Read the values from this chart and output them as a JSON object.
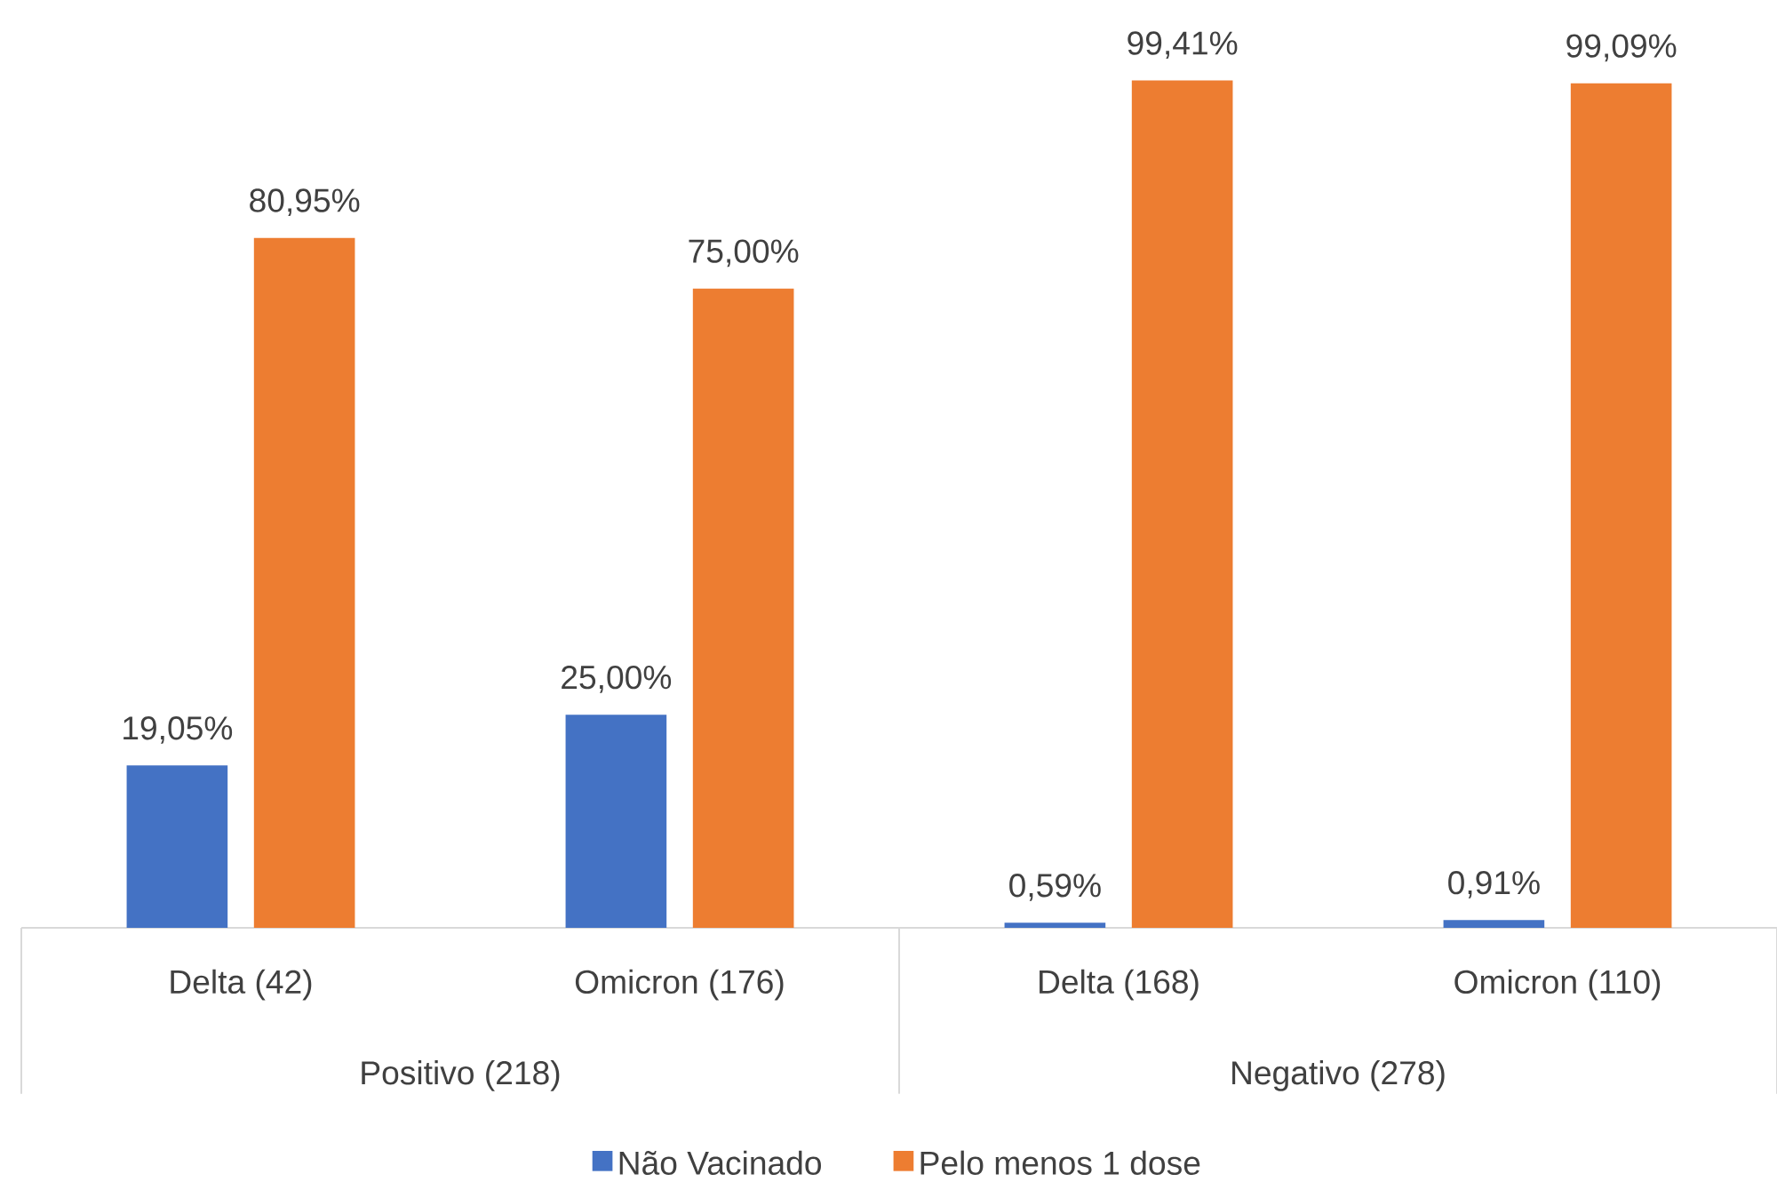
{
  "chart_data": {
    "type": "bar",
    "categories": [
      "Delta (42)",
      "Omicron (176)",
      "Delta (168)",
      "Omicron (110)"
    ],
    "annotations": [
      "Positivo (218)",
      "Negativo (278)"
    ],
    "series": [
      {
        "name": "Não Vacinado",
        "color": "#4472c4",
        "values": [
          19.05,
          25.0,
          0.59,
          0.91
        ],
        "value_labels": [
          "19,05%",
          "25,00%",
          "0,59%",
          "0,91%"
        ]
      },
      {
        "name": "Pelo menos 1 dose",
        "color": "#ed7d31",
        "values": [
          80.95,
          75.0,
          99.41,
          99.09
        ],
        "value_labels": [
          "80,95%",
          "75,00%",
          "99,41%",
          "99,09%"
        ]
      }
    ],
    "tick_labels": "x",
    "legend": "bottom"
  }
}
